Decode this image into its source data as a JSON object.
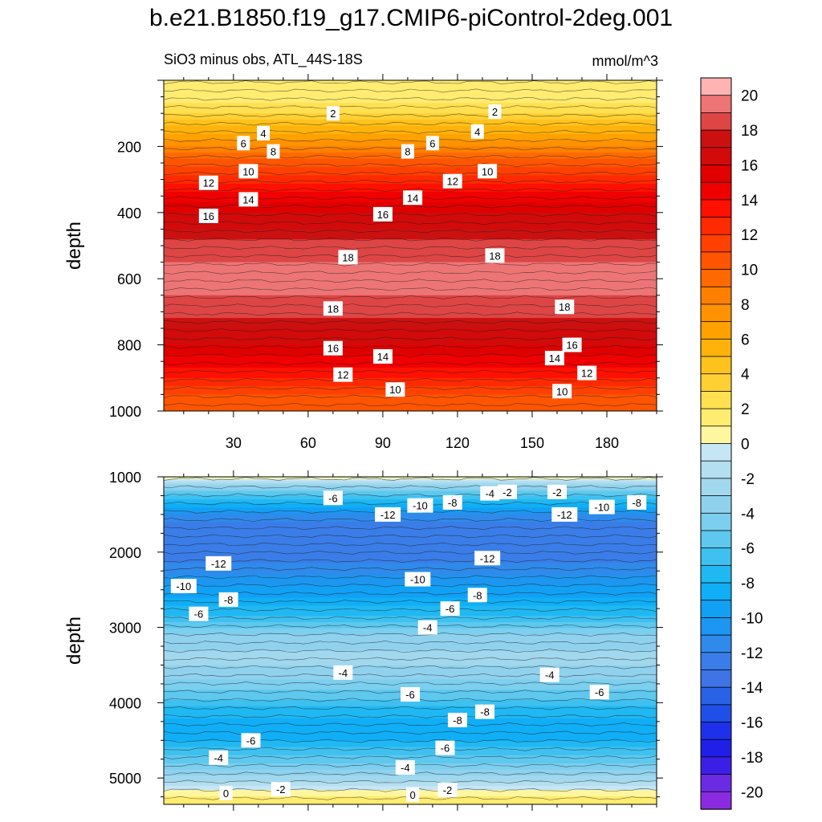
{
  "header": {
    "title": "b.e21.B1850.f19_g17.CMIP6-piControl-2deg.001",
    "subtitle": "SiO3 minus obs, ATL_44S-18S",
    "units": "mmol/m^3"
  },
  "chart_data": {
    "type": "heatmap",
    "x_ticks": [
      "30",
      "60",
      "90",
      "120",
      "150",
      "180"
    ],
    "x_tick_values": [
      30,
      60,
      90,
      120,
      150,
      180
    ],
    "xlim": [
      2,
      200
    ],
    "panels": [
      {
        "name": "upper",
        "ylabel": "depth",
        "ylim": [
          0,
          1000
        ],
        "y_ticks": [
          "200",
          "400",
          "600",
          "800",
          "1000"
        ],
        "y_tick_values": [
          200,
          400,
          600,
          800,
          1000
        ],
        "profile_depths": [
          0,
          50,
          100,
          150,
          200,
          250,
          300,
          350,
          400,
          450,
          500,
          550,
          600,
          650,
          700,
          750,
          800,
          850,
          900,
          950,
          1000
        ],
        "profile_values": [
          1,
          1.5,
          3,
          5.5,
          8,
          10.5,
          12.5,
          14.5,
          16,
          17,
          18.5,
          19,
          19,
          19,
          18.5,
          17,
          16,
          14.5,
          13,
          11,
          10
        ],
        "contour_labels": [
          {
            "x": 70,
            "y": 100,
            "text": "2"
          },
          {
            "x": 135,
            "y": 95,
            "text": "2"
          },
          {
            "x": 42,
            "y": 160,
            "text": "4"
          },
          {
            "x": 128,
            "y": 155,
            "text": "4"
          },
          {
            "x": 34,
            "y": 190,
            "text": "6"
          },
          {
            "x": 110,
            "y": 190,
            "text": "6"
          },
          {
            "x": 46,
            "y": 215,
            "text": "8"
          },
          {
            "x": 100,
            "y": 215,
            "text": "8"
          },
          {
            "x": 36,
            "y": 275,
            "text": "10"
          },
          {
            "x": 132,
            "y": 275,
            "text": "10"
          },
          {
            "x": 20,
            "y": 310,
            "text": "12"
          },
          {
            "x": 118,
            "y": 305,
            "text": "12"
          },
          {
            "x": 36,
            "y": 360,
            "text": "14"
          },
          {
            "x": 102,
            "y": 355,
            "text": "14"
          },
          {
            "x": 20,
            "y": 410,
            "text": "16"
          },
          {
            "x": 90,
            "y": 405,
            "text": "16"
          },
          {
            "x": 76,
            "y": 535,
            "text": "18"
          },
          {
            "x": 135,
            "y": 530,
            "text": "18"
          },
          {
            "x": 70,
            "y": 690,
            "text": "18"
          },
          {
            "x": 163,
            "y": 685,
            "text": "18"
          },
          {
            "x": 70,
            "y": 810,
            "text": "16"
          },
          {
            "x": 166,
            "y": 800,
            "text": "16"
          },
          {
            "x": 90,
            "y": 835,
            "text": "14"
          },
          {
            "x": 159,
            "y": 840,
            "text": "14"
          },
          {
            "x": 74,
            "y": 890,
            "text": "12"
          },
          {
            "x": 172,
            "y": 885,
            "text": "12"
          },
          {
            "x": 95,
            "y": 935,
            "text": "10"
          },
          {
            "x": 162,
            "y": 940,
            "text": "10"
          }
        ]
      },
      {
        "name": "lower",
        "ylabel": "depth",
        "ylim": [
          1000,
          5350
        ],
        "y_ticks": [
          "1000",
          "2000",
          "3000",
          "4000",
          "5000"
        ],
        "y_tick_values": [
          1000,
          2000,
          3000,
          4000,
          5000
        ],
        "profile_depths": [
          1000,
          1100,
          1300,
          1500,
          1700,
          2000,
          2300,
          2600,
          2900,
          3100,
          3300,
          3500,
          3700,
          3900,
          4100,
          4300,
          4500,
          4700,
          4900,
          5050,
          5200,
          5350
        ],
        "profile_values": [
          1,
          -3,
          -7,
          -11,
          -13,
          -13,
          -11,
          -9,
          -6.5,
          -4,
          -3,
          -3,
          -4,
          -5.5,
          -7.5,
          -8.5,
          -8,
          -6,
          -4,
          -2,
          0.5,
          2
        ],
        "contour_labels": [
          {
            "x": 70,
            "y": 1280,
            "text": "-6"
          },
          {
            "x": 92,
            "y": 1500,
            "text": "-12"
          },
          {
            "x": 105,
            "y": 1380,
            "text": "-10"
          },
          {
            "x": 118,
            "y": 1340,
            "text": "-8"
          },
          {
            "x": 133,
            "y": 1220,
            "text": "-4"
          },
          {
            "x": 140,
            "y": 1200,
            "text": "-2"
          },
          {
            "x": 160,
            "y": 1200,
            "text": "-2"
          },
          {
            "x": 163,
            "y": 1500,
            "text": "-12"
          },
          {
            "x": 178,
            "y": 1400,
            "text": "-10"
          },
          {
            "x": 192,
            "y": 1340,
            "text": "-8"
          },
          {
            "x": 132,
            "y": 2080,
            "text": "-12"
          },
          {
            "x": 24,
            "y": 2150,
            "text": "-12"
          },
          {
            "x": 10,
            "y": 2450,
            "text": "-10"
          },
          {
            "x": 104,
            "y": 2360,
            "text": "-10"
          },
          {
            "x": 28,
            "y": 2630,
            "text": "-8"
          },
          {
            "x": 128,
            "y": 2570,
            "text": "-8"
          },
          {
            "x": 16,
            "y": 2820,
            "text": "-6"
          },
          {
            "x": 117,
            "y": 2750,
            "text": "-6"
          },
          {
            "x": 108,
            "y": 3000,
            "text": "-4"
          },
          {
            "x": 74,
            "y": 3600,
            "text": "-4"
          },
          {
            "x": 157,
            "y": 3630,
            "text": "-4"
          },
          {
            "x": 101,
            "y": 3890,
            "text": "-6"
          },
          {
            "x": 177,
            "y": 3860,
            "text": "-6"
          },
          {
            "x": 131,
            "y": 4120,
            "text": "-8"
          },
          {
            "x": 120,
            "y": 4230,
            "text": "-8"
          },
          {
            "x": 37,
            "y": 4500,
            "text": "-6"
          },
          {
            "x": 115,
            "y": 4600,
            "text": "-6"
          },
          {
            "x": 24,
            "y": 4730,
            "text": "-4"
          },
          {
            "x": 99,
            "y": 4860,
            "text": "-4"
          },
          {
            "x": 49,
            "y": 5150,
            "text": "-2"
          },
          {
            "x": 116,
            "y": 5160,
            "text": "-2"
          },
          {
            "x": 27,
            "y": 5200,
            "text": "0"
          },
          {
            "x": 102,
            "y": 5220,
            "text": "0"
          }
        ]
      }
    ],
    "colorbar": {
      "labels": [
        "20",
        "18",
        "16",
        "14",
        "12",
        "10",
        "8",
        "6",
        "4",
        "2",
        "0",
        "-2",
        "-4",
        "-6",
        "-8",
        "-10",
        "-12",
        "-14",
        "-16",
        "-18",
        "-20"
      ],
      "levels": [
        -21,
        -20,
        -19,
        -18,
        -17,
        -16,
        -15,
        -14,
        -13,
        -12,
        -11,
        -10,
        -9,
        -8,
        -7,
        -6,
        -5,
        -4,
        -3,
        -2,
        -1,
        0,
        1,
        2,
        3,
        4,
        5,
        6,
        7,
        8,
        9,
        10,
        11,
        12,
        13,
        14,
        15,
        16,
        17,
        18,
        19,
        20,
        21
      ],
      "colors": [
        "#8a2be2",
        "#6a2be2",
        "#3c1fe6",
        "#1f1fe8",
        "#1f30ea",
        "#1f4fe6",
        "#2a62e6",
        "#3f74e6",
        "#3a7de8",
        "#2f8aeb",
        "#1c96f0",
        "#12a0f5",
        "#10aef6",
        "#20b8f3",
        "#3ec1f0",
        "#5ec8ef",
        "#7ccfee",
        "#90d2ee",
        "#a2d8ee",
        "#b4dff1",
        "#c6e6f5",
        "#fff6a0",
        "#ffec70",
        "#ffe050",
        "#ffd034",
        "#ffc21c",
        "#ffb30a",
        "#ffa200",
        "#ff9200",
        "#ff8000",
        "#ff6a00",
        "#ff5500",
        "#ff4000",
        "#ff2a00",
        "#ff1000",
        "#f00000",
        "#e00000",
        "#d20a0a",
        "#cc1010",
        "#de4545",
        "#ee7575",
        "#ffb4b4"
      ]
    }
  }
}
